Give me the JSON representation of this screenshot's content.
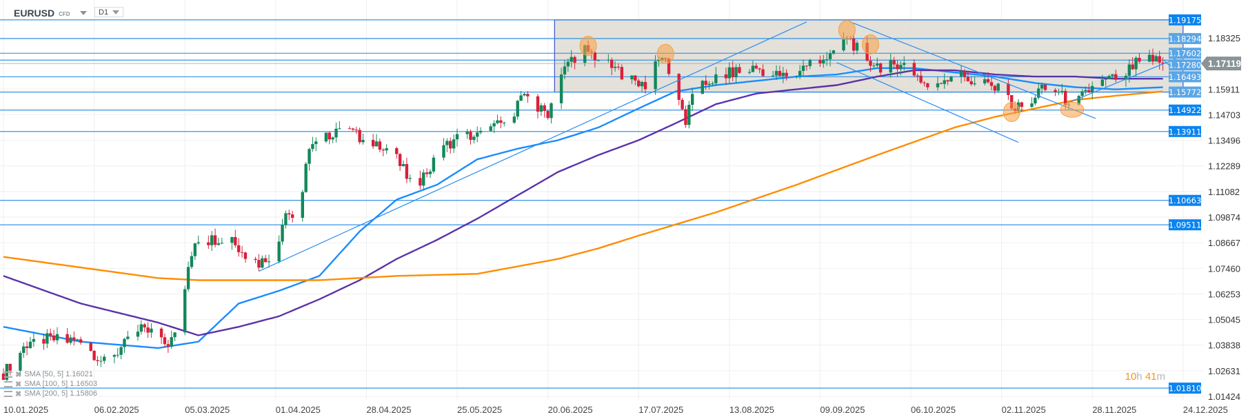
{
  "header": {
    "symbol": "EURUSD",
    "instrument_type": "CFD",
    "timeframe": "D1"
  },
  "legend": [
    {
      "label": "SMA [50, 5] 1.16021"
    },
    {
      "label": "SMA [100, 5] 1.16503"
    },
    {
      "label": "SMA [200, 5] 1.15806"
    }
  ],
  "timer": {
    "hours": "10",
    "h": "h",
    "minutes": "41",
    "m": "m"
  },
  "colors": {
    "up": "#13875a",
    "down": "#d8203a",
    "level": "#1e88e5",
    "sma50": "#1a8cff",
    "sma100": "#5b32a8",
    "sma200": "#ff8c00",
    "box_fill": "#dedcd3",
    "highlight": "#f7a145"
  },
  "chart_data": {
    "type": "candlestick",
    "symbol": "EURUSD",
    "x_ticks": [
      "10.01.2025",
      "06.02.2025",
      "05.03.2025",
      "01.04.2025",
      "28.04.2025",
      "25.05.2025",
      "20.06.2025",
      "17.07.2025",
      "13.08.2025",
      "09.09.2025",
      "06.10.2025",
      "02.11.2025",
      "28.11.2025",
      "24.12.2025"
    ],
    "x_tick_step_days": 27,
    "y_ticks": [
      "1.18325",
      "1.15911",
      "1.14703",
      "1.13496",
      "1.12289",
      "1.11082",
      "1.09874",
      "1.08667",
      "1.07460",
      "1.06253",
      "1.05045",
      "1.03838",
      "1.02631",
      "1.01424"
    ],
    "ylim": [
      1.0105,
      1.2015
    ],
    "current_price": "1.17119",
    "close_path_days_price": [
      [
        0,
        1.025
      ],
      [
        8,
        1.041
      ],
      [
        16,
        1.041
      ],
      [
        23,
        1.04
      ],
      [
        30,
        1.03
      ],
      [
        35,
        1.037
      ],
      [
        42,
        1.047
      ],
      [
        49,
        1.04
      ],
      [
        52,
        1.05
      ],
      [
        55,
        1.073
      ],
      [
        57,
        1.088
      ],
      [
        61,
        1.088
      ],
      [
        68,
        1.09
      ],
      [
        70,
        1.083
      ],
      [
        76,
        1.077
      ],
      [
        81,
        1.083
      ],
      [
        84,
        1.103
      ],
      [
        88,
        1.094
      ],
      [
        90,
        1.122
      ],
      [
        91,
        1.133
      ],
      [
        94,
        1.133
      ],
      [
        98,
        1.139
      ],
      [
        102,
        1.145
      ],
      [
        106,
        1.135
      ],
      [
        113,
        1.133
      ],
      [
        117,
        1.126
      ],
      [
        122,
        1.113
      ],
      [
        127,
        1.122
      ],
      [
        132,
        1.133
      ],
      [
        136,
        1.137
      ],
      [
        141,
        1.137
      ],
      [
        146,
        1.141
      ],
      [
        151,
        1.145
      ],
      [
        154,
        1.156
      ],
      [
        158,
        1.15
      ],
      [
        162,
        1.148
      ],
      [
        165,
        1.161
      ],
      [
        168,
        1.172
      ],
      [
        173,
        1.178
      ],
      [
        179,
        1.171
      ],
      [
        186,
        1.165
      ],
      [
        191,
        1.161
      ],
      [
        196,
        1.175
      ],
      [
        199,
        1.165
      ],
      [
        201,
        1.156
      ],
      [
        203,
        1.143
      ],
      [
        205,
        1.156
      ],
      [
        210,
        1.163
      ],
      [
        217,
        1.167
      ],
      [
        224,
        1.169
      ],
      [
        231,
        1.165
      ],
      [
        236,
        1.167
      ],
      [
        241,
        1.173
      ],
      [
        248,
        1.175
      ],
      [
        251,
        1.184
      ],
      [
        255,
        1.176
      ],
      [
        258,
        1.172
      ],
      [
        262,
        1.169
      ],
      [
        267,
        1.172
      ],
      [
        271,
        1.167
      ],
      [
        275,
        1.16
      ],
      [
        279,
        1.163
      ],
      [
        283,
        1.167
      ],
      [
        288,
        1.163
      ],
      [
        293,
        1.161
      ],
      [
        297,
        1.158
      ],
      [
        301,
        1.15
      ],
      [
        305,
        1.152
      ],
      [
        308,
        1.158
      ],
      [
        312,
        1.16
      ],
      [
        316,
        1.154
      ],
      [
        320,
        1.154
      ],
      [
        324,
        1.16
      ],
      [
        328,
        1.163
      ],
      [
        333,
        1.165
      ],
      [
        337,
        1.171
      ],
      [
        341,
        1.174
      ],
      [
        345,
        1.17119
      ]
    ],
    "series": [
      {
        "name": "SMA 50",
        "color": "#1a8cff",
        "points": [
          [
            0,
            1.047
          ],
          [
            23,
            1.04
          ],
          [
            46,
            1.037
          ],
          [
            58,
            1.04
          ],
          [
            70,
            1.058
          ],
          [
            82,
            1.064
          ],
          [
            94,
            1.071
          ],
          [
            106,
            1.092
          ],
          [
            117,
            1.107
          ],
          [
            129,
            1.114
          ],
          [
            141,
            1.126
          ],
          [
            153,
            1.131
          ],
          [
            165,
            1.135
          ],
          [
            177,
            1.141
          ],
          [
            189,
            1.15
          ],
          [
            200,
            1.158
          ],
          [
            212,
            1.161
          ],
          [
            224,
            1.163
          ],
          [
            236,
            1.165
          ],
          [
            248,
            1.166
          ],
          [
            260,
            1.169
          ],
          [
            271,
            1.169
          ],
          [
            283,
            1.167
          ],
          [
            295,
            1.165
          ],
          [
            307,
            1.162
          ],
          [
            319,
            1.16
          ],
          [
            331,
            1.159
          ],
          [
            345,
            1.16
          ]
        ]
      },
      {
        "name": "SMA 100",
        "color": "#5b32a8",
        "points": [
          [
            0,
            1.071
          ],
          [
            23,
            1.058
          ],
          [
            46,
            1.049
          ],
          [
            58,
            1.043
          ],
          [
            70,
            1.047
          ],
          [
            82,
            1.052
          ],
          [
            94,
            1.06
          ],
          [
            106,
            1.069
          ],
          [
            117,
            1.079
          ],
          [
            129,
            1.088
          ],
          [
            141,
            1.098
          ],
          [
            153,
            1.109
          ],
          [
            165,
            1.12
          ],
          [
            177,
            1.128
          ],
          [
            189,
            1.135
          ],
          [
            200,
            1.143
          ],
          [
            212,
            1.152
          ],
          [
            224,
            1.157
          ],
          [
            236,
            1.159
          ],
          [
            248,
            1.161
          ],
          [
            260,
            1.165
          ],
          [
            271,
            1.168
          ],
          [
            283,
            1.168
          ],
          [
            295,
            1.166
          ],
          [
            307,
            1.165
          ],
          [
            319,
            1.165
          ],
          [
            331,
            1.164
          ],
          [
            345,
            1.164
          ]
        ]
      },
      {
        "name": "SMA 200",
        "color": "#ff8c00",
        "points": [
          [
            0,
            1.08
          ],
          [
            23,
            1.075
          ],
          [
            46,
            1.07
          ],
          [
            58,
            1.069
          ],
          [
            94,
            1.069
          ],
          [
            117,
            1.071
          ],
          [
            141,
            1.072
          ],
          [
            165,
            1.079
          ],
          [
            177,
            1.084
          ],
          [
            189,
            1.09
          ],
          [
            212,
            1.101
          ],
          [
            236,
            1.114
          ],
          [
            260,
            1.128
          ],
          [
            283,
            1.141
          ],
          [
            295,
            1.146
          ],
          [
            307,
            1.15
          ],
          [
            319,
            1.154
          ],
          [
            331,
            1.156
          ],
          [
            345,
            1.158
          ]
        ]
      }
    ],
    "horizontal_levels": [
      "1.19175",
      "1.18294",
      "1.17602",
      "1.17280",
      "1.16493",
      "1.15772",
      "1.14922",
      "1.13911",
      "1.10663",
      "1.09511",
      "1.01810"
    ],
    "range_box": {
      "from_day": 164,
      "to_day": 351,
      "top": 1.19175,
      "bottom": 1.15772
    },
    "trendlines": [
      [
        [
          76,
          1.0732
        ],
        [
          239,
          1.1908
        ]
      ],
      [
        [
          252,
          1.1908
        ],
        [
          325,
          1.1453
        ]
      ],
      [
        [
          248,
          1.1716
        ],
        [
          302,
          1.134
        ]
      ],
      [
        [
          316,
          1.1521
        ],
        [
          352,
          1.1755
        ]
      ]
    ],
    "highlights": [
      [
        174,
        1.1795
      ],
      [
        197,
        1.1757
      ],
      [
        251,
        1.187
      ],
      [
        258,
        1.1802
      ],
      [
        300,
        1.1483
      ],
      [
        318,
        1.1494
      ]
    ]
  }
}
